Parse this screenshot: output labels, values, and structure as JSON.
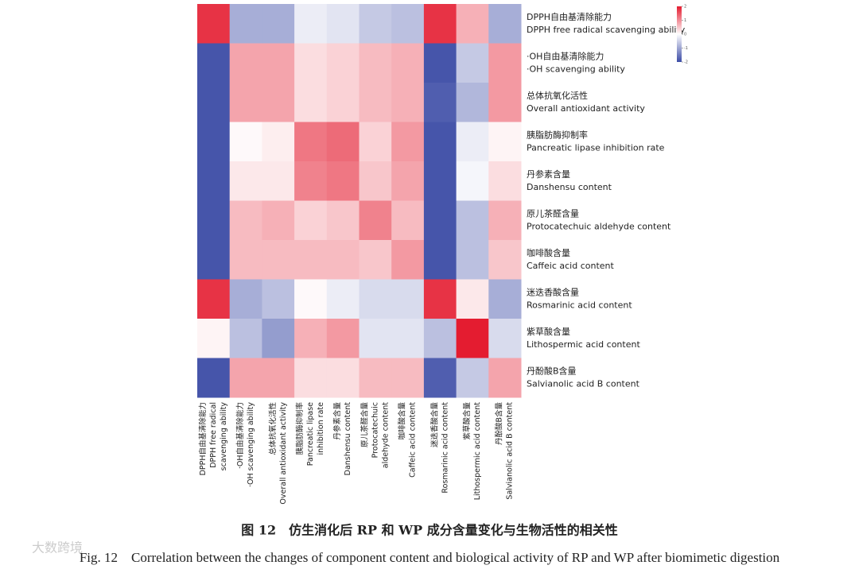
{
  "chart_data": {
    "type": "heatmap",
    "caption_zh": "图 12　仿生消化后 RP 和 WP 成分含量变化与生物活性的相关性",
    "caption_en": "Fig. 12　Correlation between the changes of component content and biological activity of RP and WP after biomimetic digestion",
    "watermark": "大数跨境",
    "x_categories": [
      [
        "DPPH自由基清除能力",
        "DPPH free radical",
        "scavenging ability"
      ],
      [
        "·OH自由基清除能力",
        "·OH scavenging ability"
      ],
      [
        "总体抗氧化活性",
        "Overall antioxidant activity"
      ],
      [
        "胰脂肪酶抑制率",
        "Pancreatic lipase",
        "inhibition rate"
      ],
      [
        "丹参素含量",
        "Danshensu content"
      ],
      [
        "原儿茶醛含量",
        "Protocatechuic",
        "aldehyde content"
      ],
      [
        "咖啡酸含量",
        "Caffeic acid content"
      ],
      [
        "迷迭香酸含量",
        "Rosmarinic acid content"
      ],
      [
        "紫草酸含量",
        "Lithospermic acid content"
      ],
      [
        "丹酚酸B含量",
        "Salvianolic acid B content"
      ]
    ],
    "y_categories": [
      [
        "DPPH自由基清除能力",
        "DPPH free radical scavenging ability"
      ],
      [
        "·OH自由基清除能力",
        "·OH scavenging ability"
      ],
      [
        "总体抗氧化活性",
        "Overall antioxidant activity"
      ],
      [
        "胰脂肪酶抑制率",
        "Pancreatic lipase inhibition rate"
      ],
      [
        "丹参素含量",
        "Danshensu content"
      ],
      [
        "原儿茶醛含量",
        "Protocatechuic aldehyde content"
      ],
      [
        "咖啡酸含量",
        "Caffeic acid content"
      ],
      [
        "迷迭香酸含量",
        "Rosmarinic acid content"
      ],
      [
        "紫草酸含量",
        "Lithospermic acid content"
      ],
      [
        "丹酚酸B含量",
        "Salvianolic acid B content"
      ]
    ],
    "values": [
      [
        1.8,
        -0.9,
        -0.9,
        -0.2,
        -0.3,
        -0.6,
        -0.7,
        1.8,
        0.7,
        -0.9
      ],
      [
        -1.9,
        0.8,
        0.8,
        0.3,
        0.4,
        0.6,
        0.7,
        -1.9,
        -0.6,
        0.9
      ],
      [
        -1.9,
        0.8,
        0.8,
        0.3,
        0.4,
        0.6,
        0.7,
        -1.8,
        -0.8,
        0.9
      ],
      [
        -1.9,
        0.05,
        0.15,
        1.2,
        1.3,
        0.4,
        0.9,
        -1.9,
        -0.2,
        0.1
      ],
      [
        -1.9,
        0.2,
        0.2,
        1.1,
        1.2,
        0.5,
        0.8,
        -1.9,
        -0.1,
        0.3
      ],
      [
        -1.9,
        0.6,
        0.7,
        0.4,
        0.5,
        1.1,
        0.6,
        -1.9,
        -0.7,
        0.7
      ],
      [
        -1.9,
        0.6,
        0.6,
        0.6,
        0.6,
        0.5,
        0.9,
        -1.9,
        -0.7,
        0.5
      ],
      [
        1.8,
        -0.9,
        -0.7,
        0.05,
        -0.2,
        -0.4,
        -0.4,
        1.8,
        0.2,
        -0.9
      ],
      [
        0.1,
        -0.7,
        -1.1,
        0.7,
        0.9,
        -0.3,
        -0.3,
        -0.7,
        2,
        -0.4
      ],
      [
        -1.9,
        0.8,
        0.8,
        0.3,
        0.3,
        0.6,
        0.6,
        -1.8,
        -0.6,
        0.8
      ]
    ],
    "clim": [
      -2,
      2
    ],
    "cticks": [
      2,
      1,
      0,
      -1,
      -2
    ],
    "colors": [
      "#3c4ca6",
      "#ffffff",
      "#e41c30"
    ]
  }
}
